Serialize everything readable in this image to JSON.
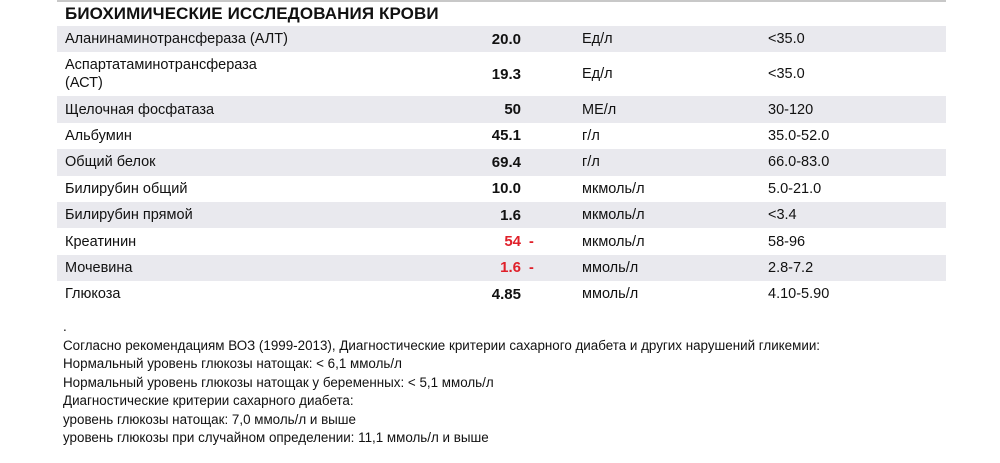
{
  "section_title": "БИОХИМИЧЕСКИЕ ИССЛЕДОВАНИЯ КРОВИ",
  "rows": [
    {
      "name": "Аланинаминотрансфераза (АЛТ)",
      "value": "20.0",
      "flag": "",
      "unit": "Ед/л",
      "ref": "<35.0"
    },
    {
      "name": "Аспартатаминотрансфераза (АСТ)",
      "value": "19.3",
      "flag": "",
      "unit": "Ед/л",
      "ref": "<35.0"
    },
    {
      "name": "Щелочная фосфатаза",
      "value": "50",
      "flag": "",
      "unit": "МЕ/л",
      "ref": "30-120"
    },
    {
      "name": "Альбумин",
      "value": "45.1",
      "flag": "",
      "unit": "г/л",
      "ref": "35.0-52.0"
    },
    {
      "name": "Общий белок",
      "value": "69.4",
      "flag": "",
      "unit": "г/л",
      "ref": "66.0-83.0"
    },
    {
      "name": "Билирубин общий",
      "value": "10.0",
      "flag": "",
      "unit": "мкмоль/л",
      "ref": "5.0-21.0"
    },
    {
      "name": "Билирубин прямой",
      "value": "1.6",
      "flag": "",
      "unit": "мкмоль/л",
      "ref": "<3.4"
    },
    {
      "name": "Креатинин",
      "value": "54",
      "flag": "-",
      "unit": "мкмоль/л",
      "ref": "58-96"
    },
    {
      "name": "Мочевина",
      "value": "1.6",
      "flag": "-",
      "unit": "ммоль/л",
      "ref": "2.8-7.2"
    },
    {
      "name": "Глюкоза",
      "value": "4.85",
      "flag": "",
      "unit": "ммоль/л",
      "ref": "4.10-5.90"
    }
  ],
  "flag_color": "#e0202a",
  "notes": [
    ".",
    "Согласно рекомендациям ВОЗ (1999-2013), Диагностические критерии сахарного диабета и других нарушений гликемии:",
    "Нормальный уровень глюкозы натощак: < 6,1 ммоль/л",
    "Нормальный уровень глюкозы натощак у беременных: < 5,1 ммоль/л",
    "Диагностические критерии сахарного диабета:",
    "уровень глюкозы натощак: 7,0 ммоль/л и выше",
    "уровень глюкозы при случайном определении: 11,1 ммоль/л и выше"
  ]
}
